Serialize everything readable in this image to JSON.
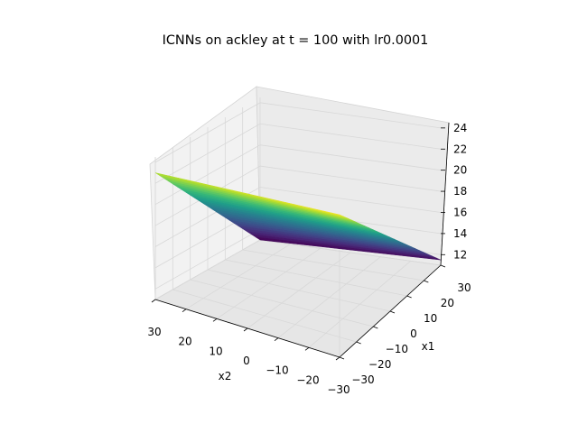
{
  "chart_data": {
    "type": "surface",
    "title": "ICNNs on ackley at t = 100 with lr0.0001",
    "colormap": "viridis",
    "xlabel": "x1",
    "ylabel": "x2",
    "zlabel": "",
    "xlim": [
      -30,
      30
    ],
    "ylim": [
      -30,
      30
    ],
    "zlim": [
      11,
      24.5
    ],
    "x_ticks": [
      -30,
      -20,
      -10,
      0,
      10,
      20,
      30
    ],
    "y_ticks": [
      -30,
      -20,
      -10,
      0,
      10,
      20,
      30
    ],
    "z_ticks": [
      12,
      14,
      16,
      18,
      20,
      22,
      24
    ],
    "x_tick_labels": [
      "−30",
      "−20",
      "−10",
      "0",
      "10",
      "20",
      "30"
    ],
    "y_tick_labels": [
      "−30",
      "−20",
      "−10",
      "0",
      "10",
      "20",
      "30"
    ],
    "z_tick_labels": [
      "12",
      "14",
      "16",
      "18",
      "20",
      "22",
      "24"
    ],
    "surface_points": [
      {
        "x1": -30,
        "x2": -30,
        "z": 24.5
      },
      {
        "x1": 30,
        "x2": -30,
        "z": 11.5
      },
      {
        "x1": -30,
        "x2": 30,
        "z": 23.0
      },
      {
        "x1": 30,
        "x2": 30,
        "z": 11.0
      },
      {
        "x1": 0,
        "x2": 0,
        "z": 17.5
      }
    ],
    "grid": true
  }
}
